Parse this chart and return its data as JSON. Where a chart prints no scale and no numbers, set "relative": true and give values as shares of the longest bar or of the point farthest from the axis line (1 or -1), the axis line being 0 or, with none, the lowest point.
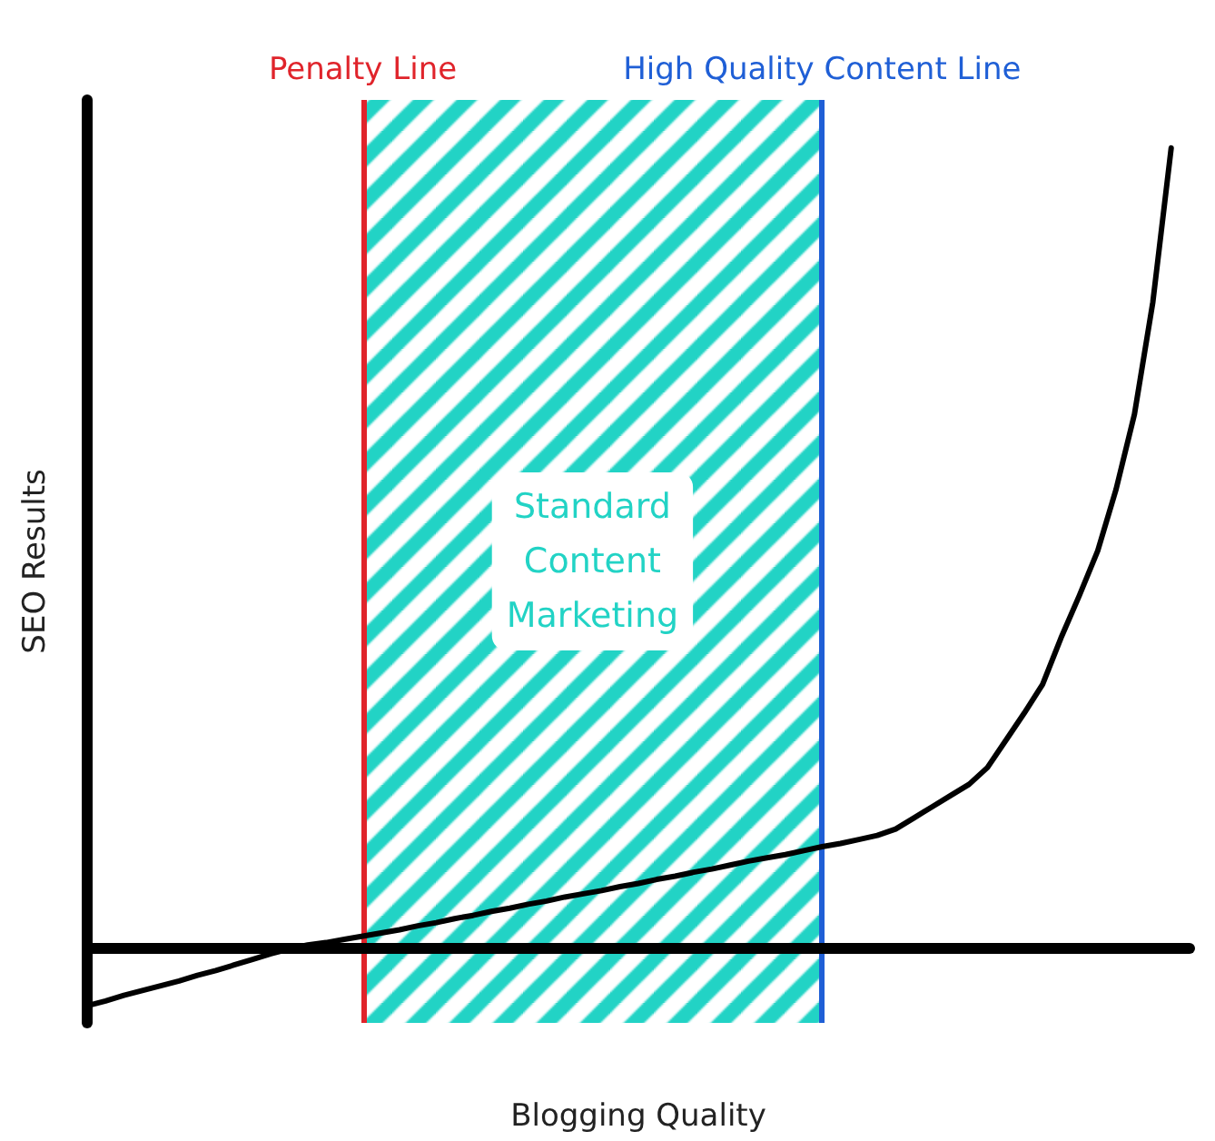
{
  "chart_data": {
    "type": "line",
    "relative": true,
    "xlabel": "Blogging Quality",
    "ylabel": "SEO Results",
    "marker": "none",
    "line_style": "solid",
    "categories": [
      null,
      null,
      null,
      null,
      null,
      null,
      null,
      null,
      null,
      null,
      null,
      null,
      null,
      null,
      null,
      null,
      null,
      null,
      null,
      null,
      null,
      null,
      null,
      null,
      null,
      null,
      null,
      null,
      null,
      null,
      null,
      null,
      null,
      null,
      null,
      null,
      null,
      null,
      null,
      null,
      null,
      null,
      null,
      null,
      null,
      null,
      null,
      null,
      null,
      null,
      null,
      null,
      null,
      null,
      null,
      null,
      null,
      null,
      null,
      null,
      null
    ],
    "series": [
      {
        "color": "#000000",
        "values": [
          -0.073,
          -0.067,
          -0.06,
          -0.054,
          -0.048,
          -0.042,
          -0.035,
          -0.029,
          -0.022,
          -0.015,
          -0.008,
          -0.002,
          0.003,
          0.006,
          0.01,
          0.014,
          0.018,
          0.022,
          0.027,
          0.031,
          0.036,
          0.04,
          0.045,
          0.049,
          0.054,
          0.058,
          0.063,
          0.067,
          0.071,
          0.076,
          0.08,
          0.085,
          0.089,
          0.094,
          0.098,
          0.103,
          0.108,
          0.112,
          0.116,
          0.121,
          0.126,
          0.13,
          0.135,
          0.14,
          0.148,
          0.162,
          0.176,
          0.19,
          0.204,
          0.225,
          0.259,
          0.293,
          0.329,
          0.387,
          0.44,
          0.496,
          0.573,
          0.667,
          0.807,
          1,
          null
        ]
      }
    ],
    "annotations": [
      "Standard\nContent\nMarketing"
    ],
    "ref_lines": [
      {
        "axis": "x",
        "label": "Penalty Line",
        "color": "#e0242b",
        "line_style": "solid"
      },
      {
        "axis": "x",
        "label": "High Quality Content Line",
        "color": "#1f5fd6",
        "line_style": "solid"
      }
    ]
  }
}
